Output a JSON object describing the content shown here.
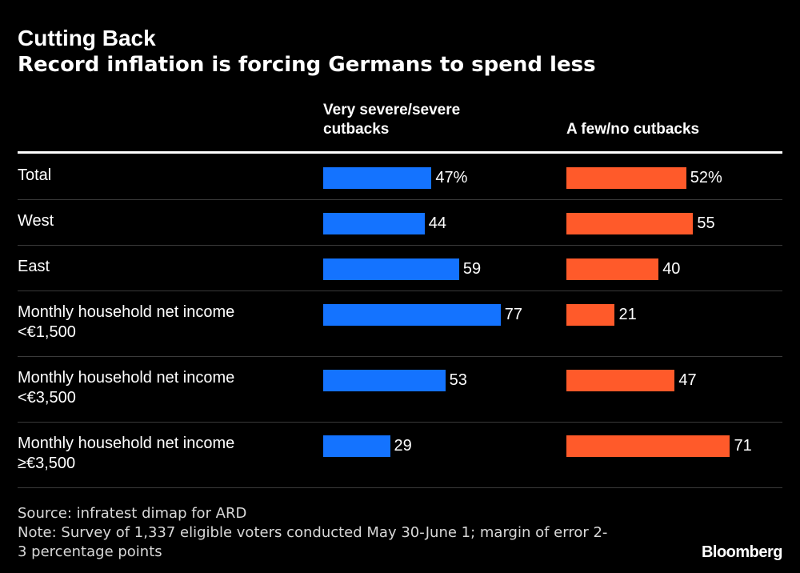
{
  "chart_data": {
    "type": "bar",
    "title": "Cutting Back",
    "subtitle": "Record inflation is forcing Germans to spend less",
    "categories": [
      [
        "Total"
      ],
      [
        "West"
      ],
      [
        "East"
      ],
      [
        "Monthly household net income",
        "<€1,500"
      ],
      [
        "Monthly household net income",
        "<€3,500"
      ],
      [
        "Monthly household net income",
        "≥€3,500"
      ]
    ],
    "series": [
      {
        "name_lines": [
          "Very severe/severe",
          "cutbacks"
        ],
        "color": "#1473ff",
        "values": [
          47,
          44,
          59,
          77,
          53,
          29
        ],
        "labels": [
          "47%",
          "44",
          "59",
          "77",
          "53",
          "29"
        ]
      },
      {
        "name_lines": [
          "A few/no cutbacks"
        ],
        "color": "#ff5a2a",
        "values": [
          52,
          55,
          40,
          21,
          47,
          71
        ],
        "labels": [
          "52%",
          "55",
          "40",
          "21",
          "47",
          "71"
        ]
      }
    ],
    "xlim": [
      0,
      100
    ]
  },
  "footer": {
    "source": "Source: infratest dimap for ARD",
    "note_lines": [
      "Note: Survey of 1,337 eligible voters conducted May 30-June 1; margin of error 2-",
      "3 percentage points"
    ]
  },
  "brand": "Bloomberg"
}
